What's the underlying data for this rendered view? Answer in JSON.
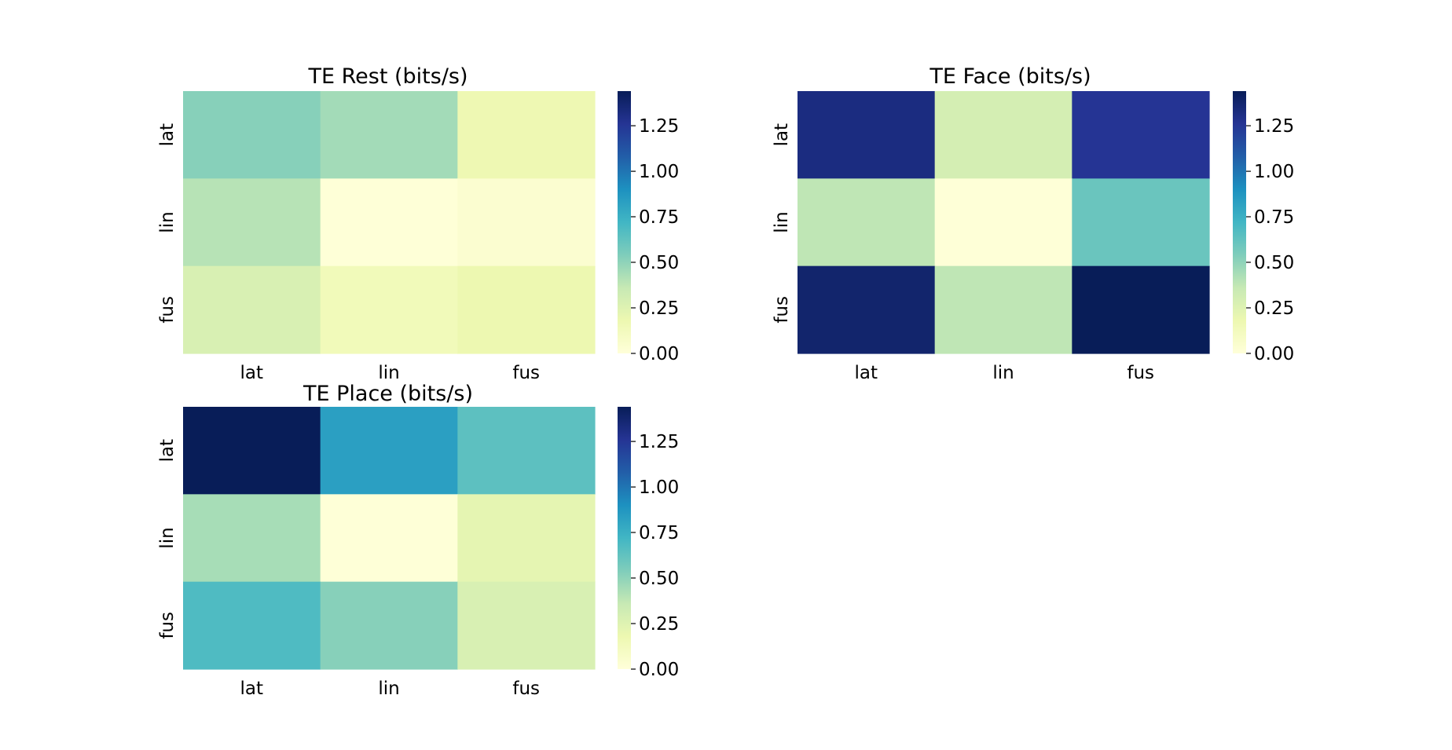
{
  "chart_data": [
    {
      "type": "heatmap",
      "title": "TE Rest (bits/s)",
      "x_categories": [
        "lat",
        "lin",
        "fus"
      ],
      "y_categories": [
        "lat",
        "lin",
        "fus"
      ],
      "values": [
        [
          0.52,
          0.45,
          0.17
        ],
        [
          0.4,
          0.01,
          0.04
        ],
        [
          0.28,
          0.14,
          0.18
        ]
      ],
      "colorbar": {
        "min": 0.0,
        "max": 1.44,
        "ticks": [
          "0.00",
          "0.25",
          "0.50",
          "0.75",
          "1.00",
          "1.25"
        ]
      }
    },
    {
      "type": "heatmap",
      "title": "TE Face (bits/s)",
      "x_categories": [
        "lat",
        "lin",
        "fus"
      ],
      "y_categories": [
        "lat",
        "lin",
        "fus"
      ],
      "values": [
        [
          1.32,
          0.3,
          1.26
        ],
        [
          0.38,
          0.01,
          0.6
        ],
        [
          1.38,
          0.38,
          1.44
        ]
      ],
      "colorbar": {
        "min": 0.0,
        "max": 1.44,
        "ticks": [
          "0.00",
          "0.25",
          "0.50",
          "0.75",
          "1.00",
          "1.25"
        ]
      }
    },
    {
      "type": "heatmap",
      "title": "TE Place (bits/s)",
      "x_categories": [
        "lat",
        "lin",
        "fus"
      ],
      "y_categories": [
        "lat",
        "lin",
        "fus"
      ],
      "values": [
        [
          1.44,
          0.83,
          0.64
        ],
        [
          0.44,
          0.01,
          0.22
        ],
        [
          0.68,
          0.52,
          0.28
        ]
      ],
      "colorbar": {
        "min": 0.0,
        "max": 1.44,
        "ticks": [
          "0.00",
          "0.25",
          "0.50",
          "0.75",
          "1.00",
          "1.25"
        ]
      }
    }
  ],
  "colors": {
    "colormap": "YlGnBu",
    "stops": [
      "#ffffd9",
      "#edf8b1",
      "#c7e9b4",
      "#7fcdbb",
      "#41b6c4",
      "#1d91c0",
      "#225ea8",
      "#253494",
      "#081d58"
    ]
  }
}
